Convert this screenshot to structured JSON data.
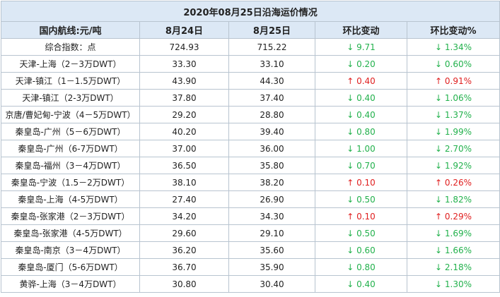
{
  "table": {
    "title": "2020年08月25日沿海运价情况",
    "header": [
      "国内航线:元/吨",
      "8月24日",
      "8月25日",
      "环比变动",
      "环比变动%"
    ],
    "rows": [
      [
        "综合指数：点",
        "724.93",
        "715.22",
        "↓ 9.71",
        "↓ 1.34%"
      ],
      [
        "天津-上海（2－3万DWT）",
        "33.30",
        "33.10",
        "↓ 0.20",
        "↓ 0.60%"
      ],
      [
        "天津-镇江（1－1.5万DWT）",
        "43.90",
        "44.30",
        "↑ 0.40",
        "↑ 0.91%"
      ],
      [
        "天津-镇江（2-3万DWT）",
        "37.80",
        "37.40",
        "↓ 0.40",
        "↓ 1.06%"
      ],
      [
        "京唐/曹妃甸-宁波（4－5万DWT）",
        "29.20",
        "28.80",
        "↓ 0.40",
        "↓ 1.37%"
      ],
      [
        "秦皇岛-广州（5－6万DWT）",
        "40.20",
        "39.40",
        "↓ 0.80",
        "↓ 1.99%"
      ],
      [
        "秦皇岛-广州（6-7万DWT）",
        "37.00",
        "36.00",
        "↓ 1.00",
        "↓ 2.70%"
      ],
      [
        "秦皇岛-福州（3－4万DWT）",
        "36.50",
        "35.80",
        "↓ 0.70",
        "↓ 1.92%"
      ],
      [
        "秦皇岛-宁波（1.5－2万DWT）",
        "38.10",
        "38.20",
        "↑ 0.10",
        "↑ 0.26%"
      ],
      [
        "秦皇岛-上海（4-5万DWT）",
        "27.40",
        "26.90",
        "↓ 0.50",
        "↓ 1.82%"
      ],
      [
        "秦皇岛-张家港（2－3万DWT）",
        "34.20",
        "34.30",
        "↑ 0.10",
        "↑ 0.29%"
      ],
      [
        "秦皇岛-张家港（4-5万DWT）",
        "29.60",
        "29.10",
        "↓ 0.50",
        "↓ 1.69%"
      ],
      [
        "秦皇岛-南京（3－4万DWT）",
        "36.20",
        "35.60",
        "↓ 0.60",
        "↓ 1.66%"
      ],
      [
        "秦皇岛-厦门（5-6万DWT）",
        "36.70",
        "35.90",
        "↓ 0.80",
        "↓ 2.18%"
      ],
      [
        "黄骅-上海（3－4万DWT）",
        "30.80",
        "30.40",
        "↓ 0.40",
        "↓ 1.30%"
      ]
    ]
  }
}
